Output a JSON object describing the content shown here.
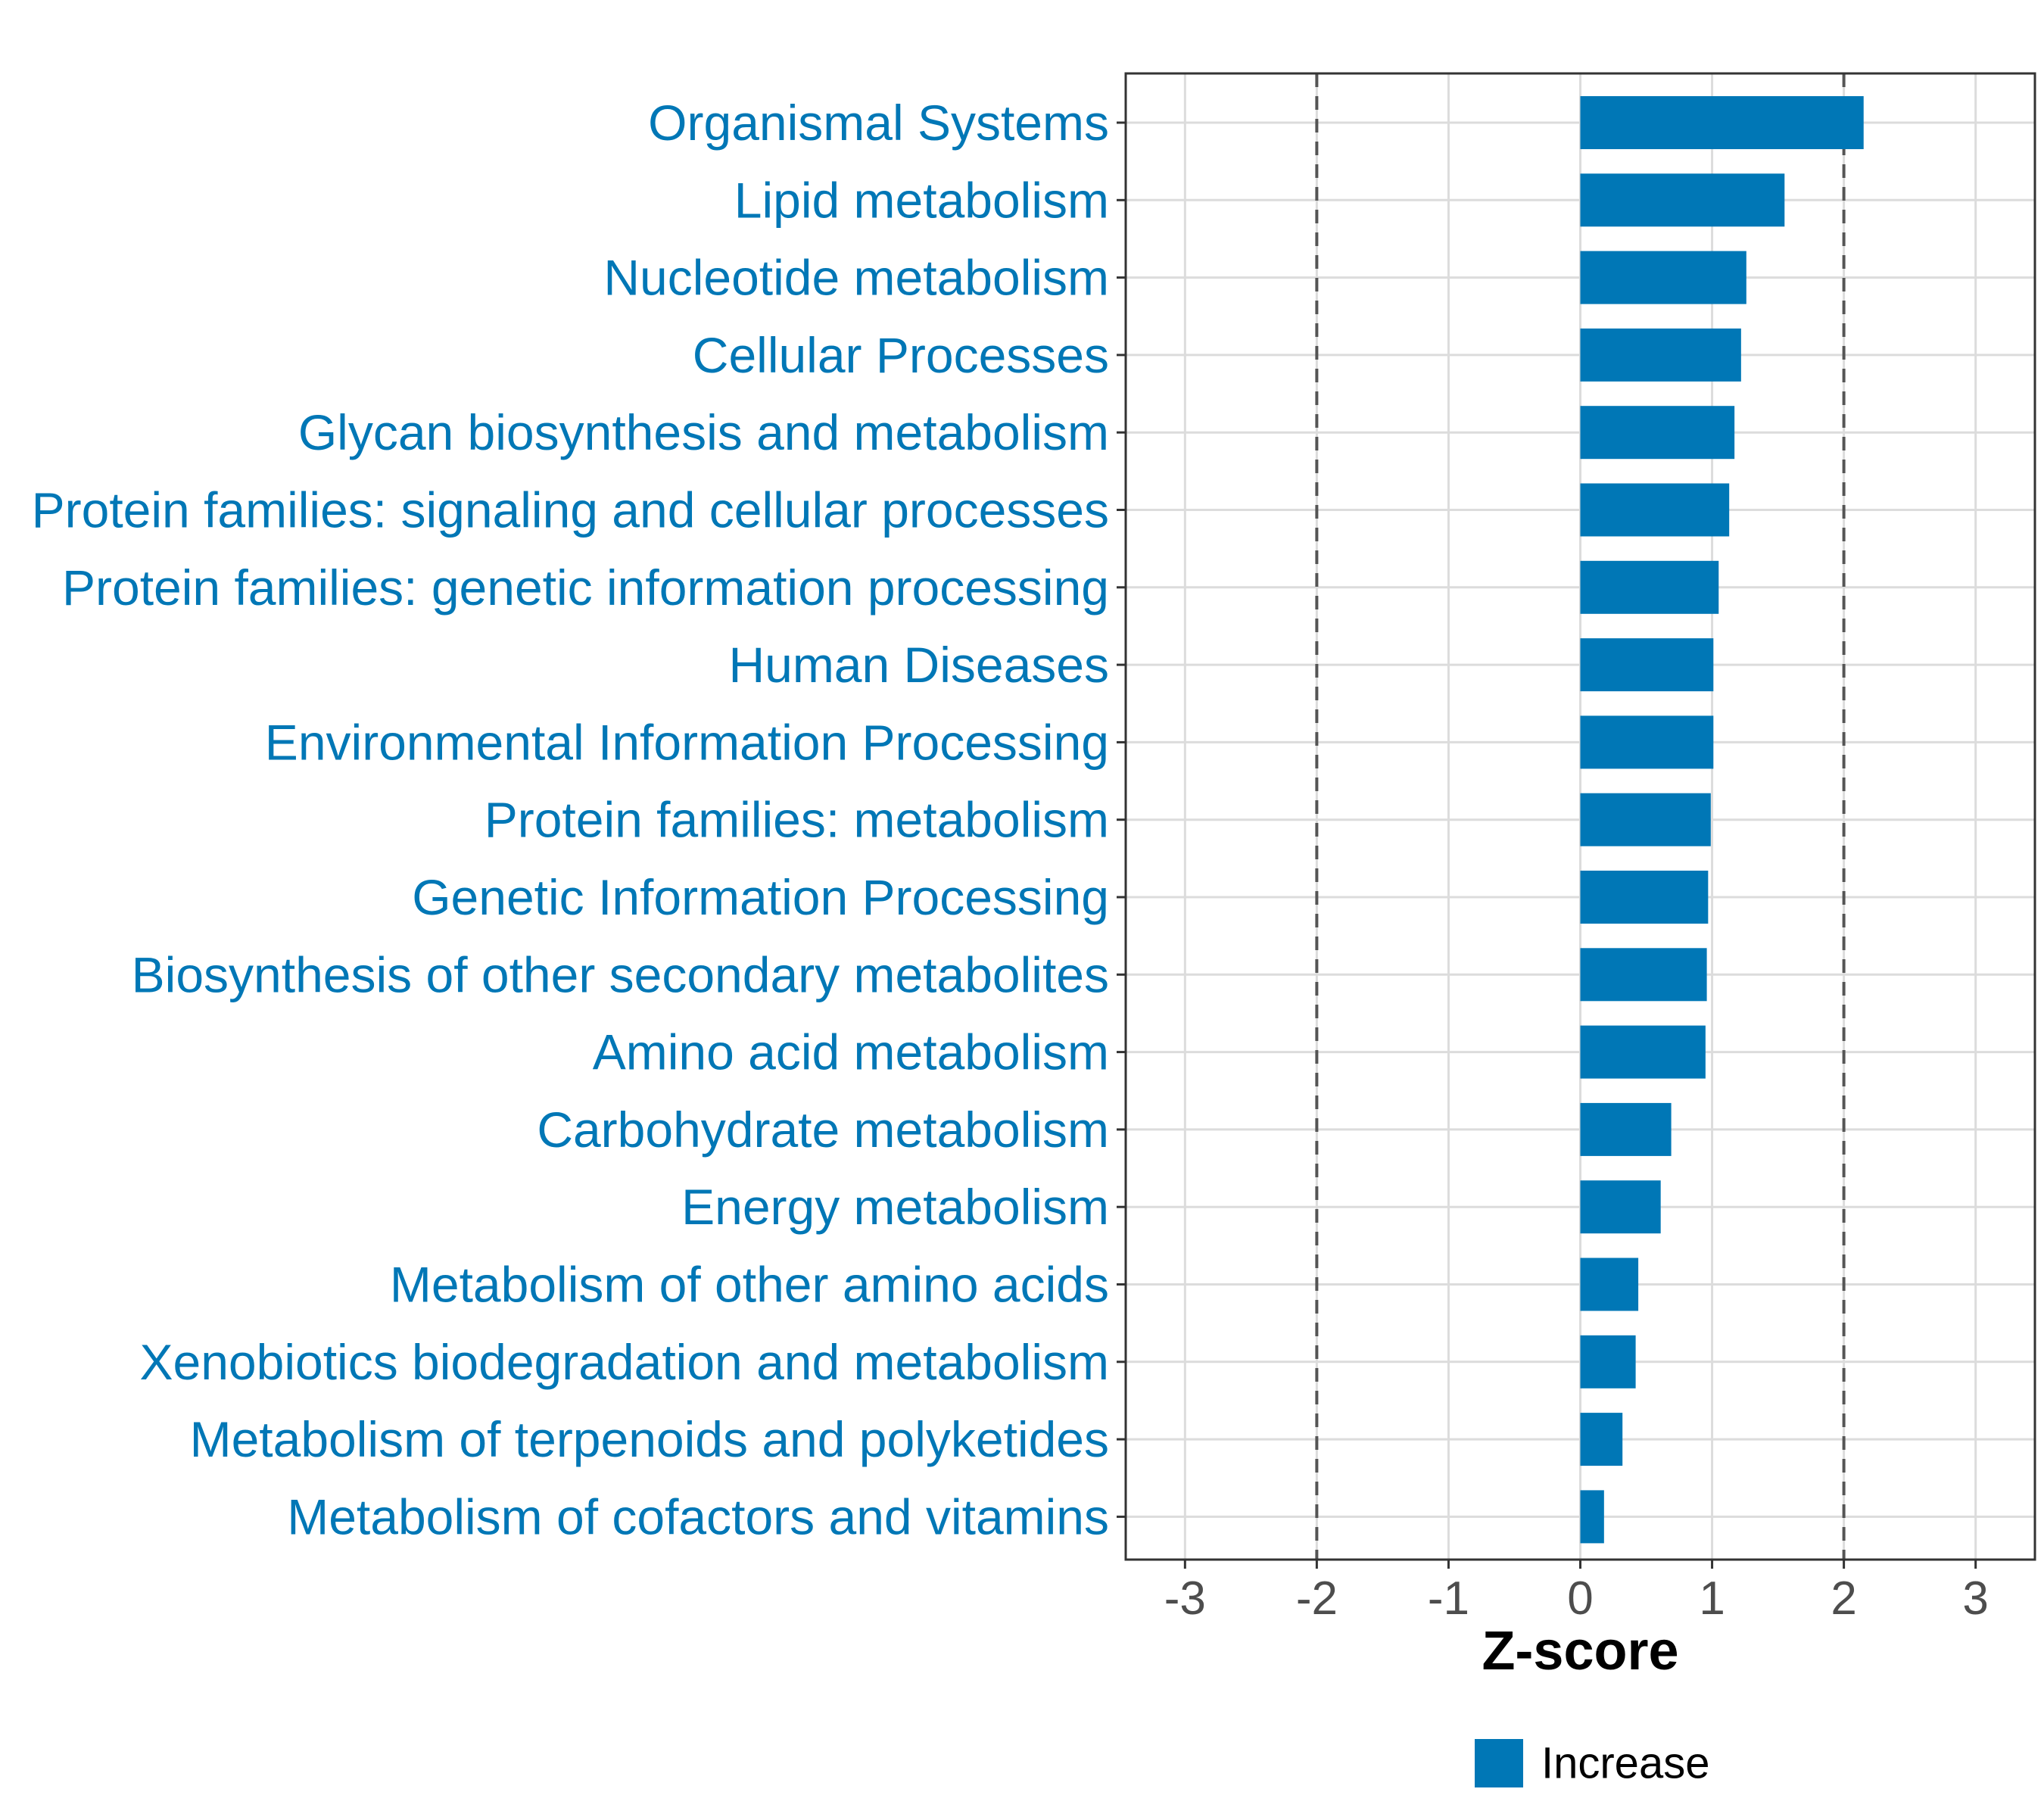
{
  "chart_data": {
    "type": "bar",
    "orientation": "horizontal",
    "categories": [
      "Organismal Systems",
      "Lipid metabolism",
      "Nucleotide metabolism",
      "Cellular Processes",
      "Glycan biosynthesis and metabolism",
      "Protein families: signaling and cellular processes",
      "Protein families: genetic information processing",
      "Human Diseases",
      "Environmental Information Processing",
      "Protein families: metabolism",
      "Genetic Information Processing",
      "Biosynthesis of other secondary metabolites",
      "Amino acid metabolism",
      "Carbohydrate metabolism",
      "Energy metabolism",
      "Metabolism of other amino acids",
      "Xenobiotics biodegradation and metabolism",
      "Metabolism of terpenoids and polyketides",
      "Metabolism of cofactors and vitamins"
    ],
    "values": [
      2.15,
      1.55,
      1.26,
      1.22,
      1.17,
      1.13,
      1.05,
      1.01,
      1.01,
      0.99,
      0.97,
      0.96,
      0.95,
      0.69,
      0.61,
      0.44,
      0.42,
      0.32,
      0.18
    ],
    "xlabel": "Z-score",
    "ylabel": "",
    "xlim": [
      -3.45,
      3.45
    ],
    "xticks": [
      -3,
      -2,
      -1,
      0,
      1,
      2,
      3
    ],
    "xtick_labels": [
      "-3",
      "-2",
      "-1",
      "0",
      "1",
      "2",
      "3"
    ],
    "reference_lines": [
      -2,
      2
    ],
    "grid": true,
    "legend": {
      "position": "bottom",
      "entries": [
        {
          "label": "Increase",
          "color": "#0077b6"
        }
      ]
    }
  },
  "colors": {
    "bar": "#0077b6",
    "category_label": "#0077b6",
    "grid": "#dcdcdc",
    "reference_line": "#555555",
    "panel_border": "#333333"
  }
}
